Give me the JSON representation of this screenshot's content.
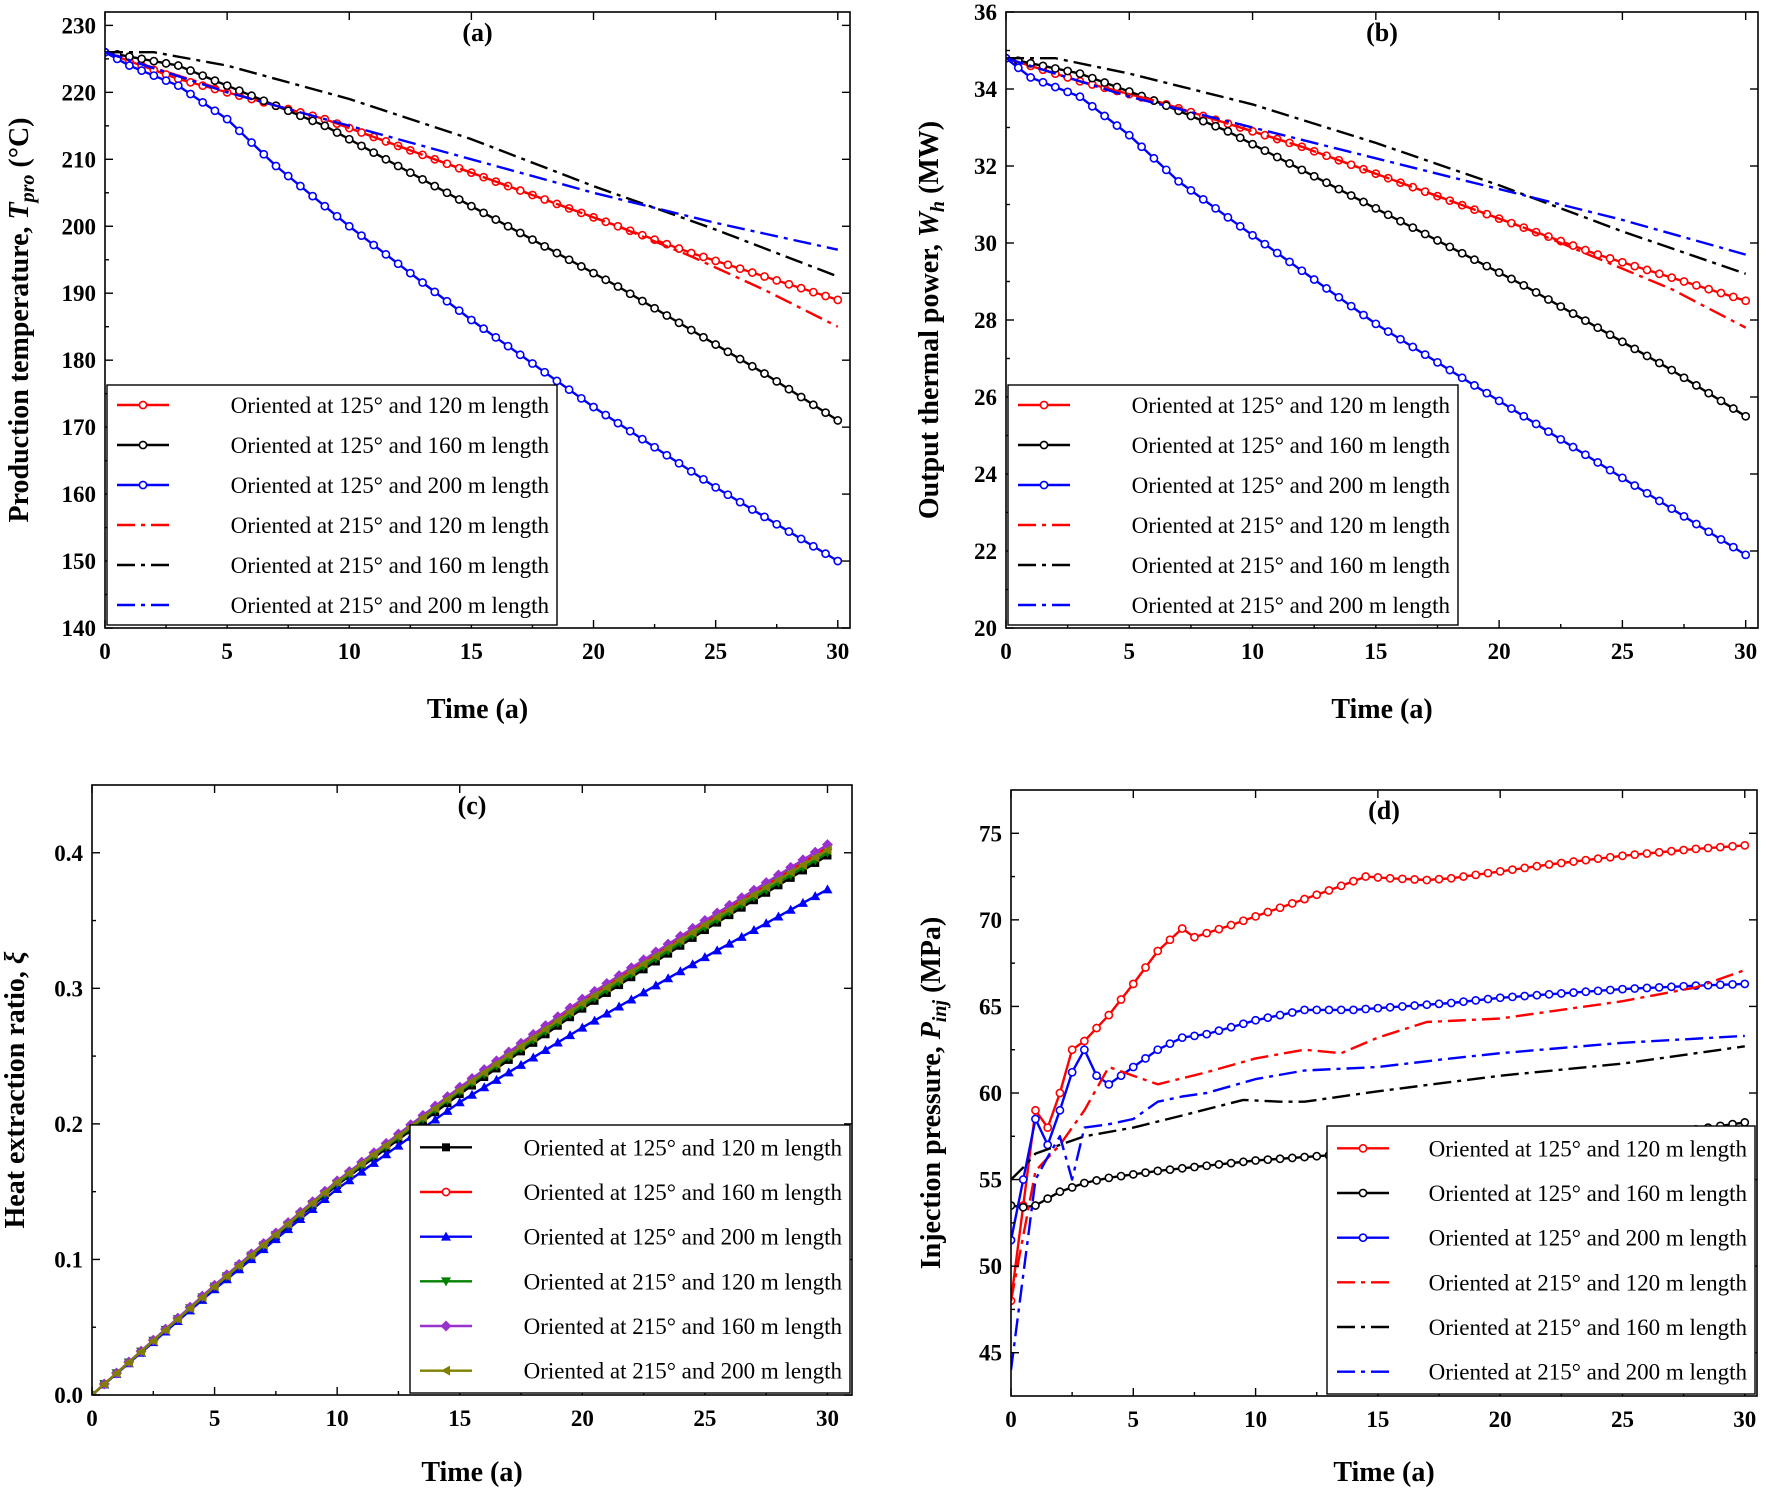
{
  "chart_data": [
    {
      "type": "line",
      "title": "(a)",
      "xlabel": "Time (a)",
      "ylabel_parts": [
        "Production temperature, ",
        "T",
        "pro",
        " (°C)"
      ],
      "xlim": [
        0,
        30.5
      ],
      "ylim": [
        140,
        232
      ],
      "xticks": [
        0,
        5,
        10,
        15,
        20,
        25,
        30
      ],
      "yticks": [
        140,
        150,
        160,
        170,
        180,
        190,
        200,
        210,
        220,
        230
      ],
      "legend_position": "bottom-left",
      "series": [
        {
          "name": "Oriented at 125° and 120 m length",
          "color": "#ff0000",
          "style": "solid",
          "marker": "circle",
          "x": [
            0,
            3,
            6,
            9,
            12,
            15,
            18,
            21,
            24,
            27,
            30
          ],
          "y": [
            226,
            222,
            219,
            216,
            212,
            208,
            204,
            200,
            196,
            192.5,
            189
          ]
        },
        {
          "name": "Oriented at 125° and 160 m length",
          "color": "#000000",
          "style": "solid",
          "marker": "circle",
          "x": [
            0,
            3,
            6,
            9,
            12,
            15,
            18,
            21,
            24,
            27,
            30
          ],
          "y": [
            226,
            224,
            219.5,
            215,
            209,
            203,
            197,
            191,
            184.5,
            178,
            171
          ]
        },
        {
          "name": "Oriented at 125° and 200 m length",
          "color": "#0000ff",
          "style": "solid",
          "marker": "circle",
          "x": [
            0,
            1,
            3,
            5,
            7,
            10,
            15,
            20,
            25,
            30
          ],
          "y": [
            226,
            224,
            221,
            216,
            209,
            200,
            186,
            173,
            161,
            150
          ]
        },
        {
          "name": "Oriented at 215° and 120 m length",
          "color": "#ff0000",
          "style": "dashdot",
          "marker": "none",
          "x": [
            0,
            3,
            6,
            9,
            12,
            15,
            18,
            21,
            24,
            27,
            30
          ],
          "y": [
            226,
            222.5,
            219,
            216,
            212,
            208,
            204,
            200,
            195.5,
            190.5,
            185
          ]
        },
        {
          "name": "Oriented at 215° and 160 m length",
          "color": "#000000",
          "style": "dashdot",
          "marker": "none",
          "x": [
            0,
            2,
            5,
            10,
            15,
            20,
            25,
            30
          ],
          "y": [
            226,
            226,
            224,
            219,
            213,
            206,
            199.5,
            192.5
          ]
        },
        {
          "name": "Oriented at 215° and 200 m length",
          "color": "#0000ff",
          "style": "dashdot",
          "marker": "none",
          "x": [
            0,
            5,
            10,
            15,
            20,
            25,
            30
          ],
          "y": [
            226,
            220,
            215,
            210,
            205,
            200.5,
            196.5
          ]
        }
      ]
    },
    {
      "type": "line",
      "title": "(b)",
      "xlabel": "Time (a)",
      "ylabel_parts": [
        "Output thermal power, ",
        "W",
        "h",
        " (MW)"
      ],
      "xlim": [
        0,
        30.5
      ],
      "ylim": [
        20,
        36
      ],
      "xticks": [
        0,
        5,
        10,
        15,
        20,
        25,
        30
      ],
      "yticks": [
        20,
        22,
        24,
        26,
        28,
        30,
        32,
        34,
        36
      ],
      "legend_position": "bottom-left",
      "series": [
        {
          "name": "Oriented at 125° and 120 m length",
          "color": "#ff0000",
          "style": "solid",
          "marker": "circle",
          "x": [
            0,
            3,
            6,
            9,
            12,
            15,
            18,
            21,
            24,
            27,
            30
          ],
          "y": [
            34.8,
            34.2,
            33.7,
            33.1,
            32.5,
            31.8,
            31.1,
            30.4,
            29.7,
            29.1,
            28.5
          ]
        },
        {
          "name": "Oriented at 125° and 160 m length",
          "color": "#000000",
          "style": "solid",
          "marker": "circle",
          "x": [
            0,
            3,
            6,
            9,
            12,
            15,
            18,
            21,
            24,
            27,
            30
          ],
          "y": [
            34.8,
            34.4,
            33.7,
            32.9,
            31.9,
            30.9,
            29.9,
            28.9,
            27.8,
            26.7,
            25.5
          ]
        },
        {
          "name": "Oriented at 125° and 200 m length",
          "color": "#0000ff",
          "style": "solid",
          "marker": "circle",
          "x": [
            0,
            1,
            3,
            5,
            7,
            10,
            15,
            20,
            25,
            30
          ],
          "y": [
            34.8,
            34.3,
            33.8,
            32.8,
            31.6,
            30.2,
            27.9,
            25.9,
            23.9,
            21.9
          ]
        },
        {
          "name": "Oriented at 215° and 120 m length",
          "color": "#ff0000",
          "style": "dashdot",
          "marker": "none",
          "x": [
            0,
            3,
            6,
            9,
            12,
            15,
            18,
            21,
            24,
            27,
            30
          ],
          "y": [
            34.8,
            34.2,
            33.7,
            33.1,
            32.5,
            31.8,
            31.1,
            30.4,
            29.6,
            28.8,
            27.8
          ]
        },
        {
          "name": "Oriented at 215° and 160 m length",
          "color": "#000000",
          "style": "dashdot",
          "marker": "none",
          "x": [
            0,
            2,
            5,
            10,
            15,
            20,
            25,
            30
          ],
          "y": [
            34.8,
            34.8,
            34.4,
            33.6,
            32.6,
            31.5,
            30.3,
            29.2
          ]
        },
        {
          "name": "Oriented at 215° and 200 m length",
          "color": "#0000ff",
          "style": "dashdot",
          "marker": "none",
          "x": [
            0,
            5,
            10,
            15,
            20,
            25,
            30
          ],
          "y": [
            34.8,
            33.8,
            33.0,
            32.2,
            31.4,
            30.6,
            29.7
          ]
        }
      ]
    },
    {
      "type": "line",
      "title": "(c)",
      "xlabel": "Time (a)",
      "ylabel_parts": [
        "Heat extraction ratio, ",
        "ξ",
        "",
        ""
      ],
      "xlim": [
        0,
        31
      ],
      "ylim": [
        0,
        0.45
      ],
      "xticks": [
        0,
        5,
        10,
        15,
        20,
        25,
        30
      ],
      "yticks": [
        0.0,
        0.1,
        0.2,
        0.3,
        0.4
      ],
      "ytick_labels": [
        "0.0",
        "0.1",
        "0.2",
        "0.3",
        "0.4"
      ],
      "legend_position": "bottom-right",
      "series": [
        {
          "name": "Oriented at 125° and 120 m length",
          "color": "#000000",
          "style": "solid",
          "marker": "square",
          "x": [
            0,
            5,
            10,
            15,
            20,
            25,
            30
          ],
          "y": [
            0,
            0.079,
            0.155,
            0.222,
            0.285,
            0.343,
            0.398
          ]
        },
        {
          "name": "Oriented at 125° and 160 m length",
          "color": "#ff0000",
          "style": "solid",
          "marker": "circle",
          "x": [
            0,
            5,
            10,
            15,
            20,
            25,
            30
          ],
          "y": [
            0,
            0.08,
            0.157,
            0.226,
            0.29,
            0.348,
            0.404
          ]
        },
        {
          "name": "Oriented at 125° and 200 m length",
          "color": "#0000ff",
          "style": "solid",
          "marker": "triangle-up",
          "x": [
            0,
            5,
            10,
            15,
            20,
            25,
            30
          ],
          "y": [
            0,
            0.078,
            0.152,
            0.216,
            0.271,
            0.323,
            0.373
          ]
        },
        {
          "name": "Oriented at 215° and 120 m length",
          "color": "#008000",
          "style": "solid",
          "marker": "triangle-down",
          "x": [
            0,
            5,
            10,
            15,
            20,
            25,
            30
          ],
          "y": [
            0,
            0.08,
            0.156,
            0.224,
            0.287,
            0.345,
            0.4
          ]
        },
        {
          "name": "Oriented at 215° and 160 m length",
          "color": "#9932cc",
          "style": "solid",
          "marker": "diamond",
          "x": [
            0,
            5,
            10,
            15,
            20,
            25,
            30
          ],
          "y": [
            0,
            0.081,
            0.158,
            0.227,
            0.292,
            0.35,
            0.406
          ]
        },
        {
          "name": "Oriented at 215° and 200 m length",
          "color": "#808000",
          "style": "solid",
          "marker": "triangle-left",
          "x": [
            0,
            5,
            10,
            15,
            20,
            25,
            30
          ],
          "y": [
            0,
            0.08,
            0.157,
            0.225,
            0.289,
            0.347,
            0.402
          ]
        }
      ]
    },
    {
      "type": "line",
      "title": "(d)",
      "xlabel": "Time (a)",
      "ylabel_parts": [
        "Injection pressure, ",
        "P",
        "inj",
        " (MPa)"
      ],
      "xlim": [
        0,
        30.5
      ],
      "ylim": [
        42.5,
        77.5
      ],
      "xticks": [
        0,
        5,
        10,
        15,
        20,
        25,
        30
      ],
      "yticks": [
        45,
        50,
        55,
        60,
        65,
        70,
        75
      ],
      "legend_position": "bottom-right",
      "series": [
        {
          "name": "Oriented at 125° and 120 m length",
          "color": "#ff0000",
          "style": "solid",
          "marker": "circle",
          "x": [
            0,
            1,
            1.5,
            2,
            2.5,
            3,
            4,
            5,
            6,
            7,
            7.5,
            9,
            11,
            13,
            14.5,
            15.5,
            17,
            18,
            20,
            22,
            25,
            28,
            30
          ],
          "y": [
            48,
            59,
            58,
            60,
            62.5,
            63,
            64.5,
            66.3,
            68.2,
            69.5,
            69,
            69.7,
            70.7,
            71.7,
            72.5,
            72.4,
            72.3,
            72.4,
            72.8,
            73.2,
            73.7,
            74.1,
            74.3
          ]
        },
        {
          "name": "Oriented at 125° and 160 m length",
          "color": "#000000",
          "style": "solid",
          "marker": "circle",
          "x": [
            0,
            0.5,
            1,
            2,
            3,
            4,
            6,
            8,
            10,
            12,
            15,
            18,
            20,
            22,
            25,
            28,
            30
          ],
          "y": [
            53.5,
            53.4,
            53.5,
            54.3,
            54.8,
            55.1,
            55.5,
            55.8,
            56.1,
            56.3,
            56.6,
            56.8,
            57.0,
            57.2,
            57.5,
            57.9,
            58.3
          ]
        },
        {
          "name": "Oriented at 125° and 200 m length",
          "color": "#0000ff",
          "style": "solid",
          "marker": "circle",
          "x": [
            0,
            1,
            1.5,
            2,
            2.5,
            3,
            3.5,
            4,
            5,
            6,
            7,
            8,
            10,
            12,
            14,
            16,
            18,
            20,
            22,
            25,
            28,
            30
          ],
          "y": [
            51.5,
            58.5,
            57,
            59,
            61.2,
            62.5,
            61,
            60.5,
            61.5,
            62.5,
            63.2,
            63.4,
            64.2,
            64.8,
            64.8,
            65.0,
            65.2,
            65.5,
            65.7,
            66.0,
            66.2,
            66.3
          ]
        },
        {
          "name": "Oriented at 215° and 120 m length",
          "color": "#ff0000",
          "style": "dashdot",
          "marker": "none",
          "x": [
            0,
            1,
            2,
            3,
            4,
            5,
            6,
            8,
            10,
            12,
            13.5,
            15,
            17,
            20,
            25,
            28,
            30
          ],
          "y": [
            48,
            55.5,
            57,
            59,
            61.5,
            61,
            60.5,
            61.2,
            62,
            62.5,
            62.3,
            63.2,
            64.1,
            64.3,
            65.3,
            66.1,
            67.1
          ]
        },
        {
          "name": "Oriented at 215° and 160 m length",
          "color": "#000000",
          "style": "dashdot",
          "marker": "none",
          "x": [
            0,
            0.5,
            1,
            2,
            3,
            5,
            7,
            9.5,
            11,
            12,
            15,
            20,
            25,
            30
          ],
          "y": [
            55,
            55.7,
            56.5,
            57,
            57.5,
            58,
            58.7,
            59.6,
            59.5,
            59.5,
            60.1,
            61,
            61.7,
            62.7
          ]
        },
        {
          "name": "Oriented at 215° and 200 m length",
          "color": "#0000ff",
          "style": "dashdot",
          "marker": "none",
          "x": [
            0,
            1,
            1.5,
            2,
            2.5,
            3,
            4,
            5,
            6,
            7,
            8,
            10,
            12,
            15,
            18,
            20,
            25,
            30
          ],
          "y": [
            44,
            55,
            56.3,
            57.5,
            55,
            58,
            58.2,
            58.5,
            59.5,
            59.8,
            60,
            60.8,
            61.3,
            61.5,
            62,
            62.3,
            62.9,
            63.3
          ]
        }
      ]
    }
  ]
}
